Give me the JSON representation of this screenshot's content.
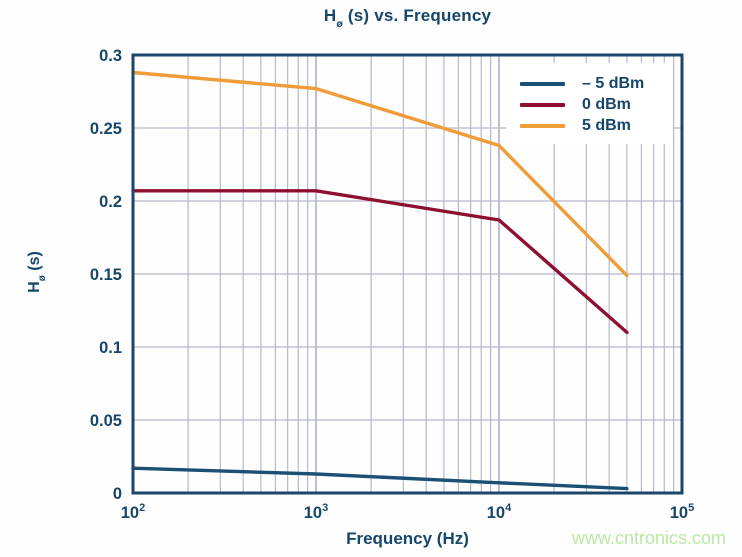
{
  "page": {
    "background": "#fefefe"
  },
  "header": {
    "title_main": "H",
    "title_sub": "ø",
    "title_rest": " (s) vs. Frequency"
  },
  "axes": {
    "y_label_main": "H",
    "y_label_sub": "ø",
    "y_label_rest": " (s)",
    "x_label": "Frequency (Hz)"
  },
  "watermark": {
    "text": "www.cntronics.com",
    "color": "#b9e8a6"
  },
  "colors": {
    "text": "#17466b",
    "spine": "#1c4669",
    "grid_minor": "#b6b9cc",
    "grid_major": "#a2a6bf",
    "legend_bg": "#ffffff"
  },
  "chart_data": {
    "type": "line",
    "title": "Hø (s) vs. Frequency",
    "xlabel": "Frequency (Hz)",
    "ylabel": "Hø (s)",
    "x_scale": "log",
    "xlim": [
      100,
      100000
    ],
    "ylim": [
      0,
      0.3
    ],
    "x_ticks": [
      100,
      1000,
      10000,
      100000
    ],
    "x_tick_labels": [
      [
        "10",
        "2"
      ],
      [
        "10",
        "3"
      ],
      [
        "10",
        "4"
      ],
      [
        "10",
        "5"
      ]
    ],
    "y_ticks": [
      0,
      0.05,
      0.1,
      0.15,
      0.2,
      0.25,
      0.3
    ],
    "y_tick_labels": [
      "0",
      "0.05",
      "0.1",
      "0.15",
      "0.2",
      "0.25",
      "0.3"
    ],
    "grid": "horizontal-major + vertical-log-minor",
    "legend_position": "top-right-inside",
    "series": [
      {
        "name": "– 5 dBm",
        "color": "#1c4f74",
        "x": [
          100,
          1000,
          10000,
          50000
        ],
        "y": [
          0.017,
          0.013,
          0.007,
          0.003
        ]
      },
      {
        "name": "0 dBm",
        "color": "#8e1030",
        "x": [
          100,
          1000,
          10000,
          50000
        ],
        "y": [
          0.207,
          0.207,
          0.187,
          0.11
        ]
      },
      {
        "name": "5 dBm",
        "color": "#f09c38",
        "x": [
          100,
          1000,
          10000,
          50000
        ],
        "y": [
          0.288,
          0.277,
          0.238,
          0.149
        ]
      }
    ]
  }
}
